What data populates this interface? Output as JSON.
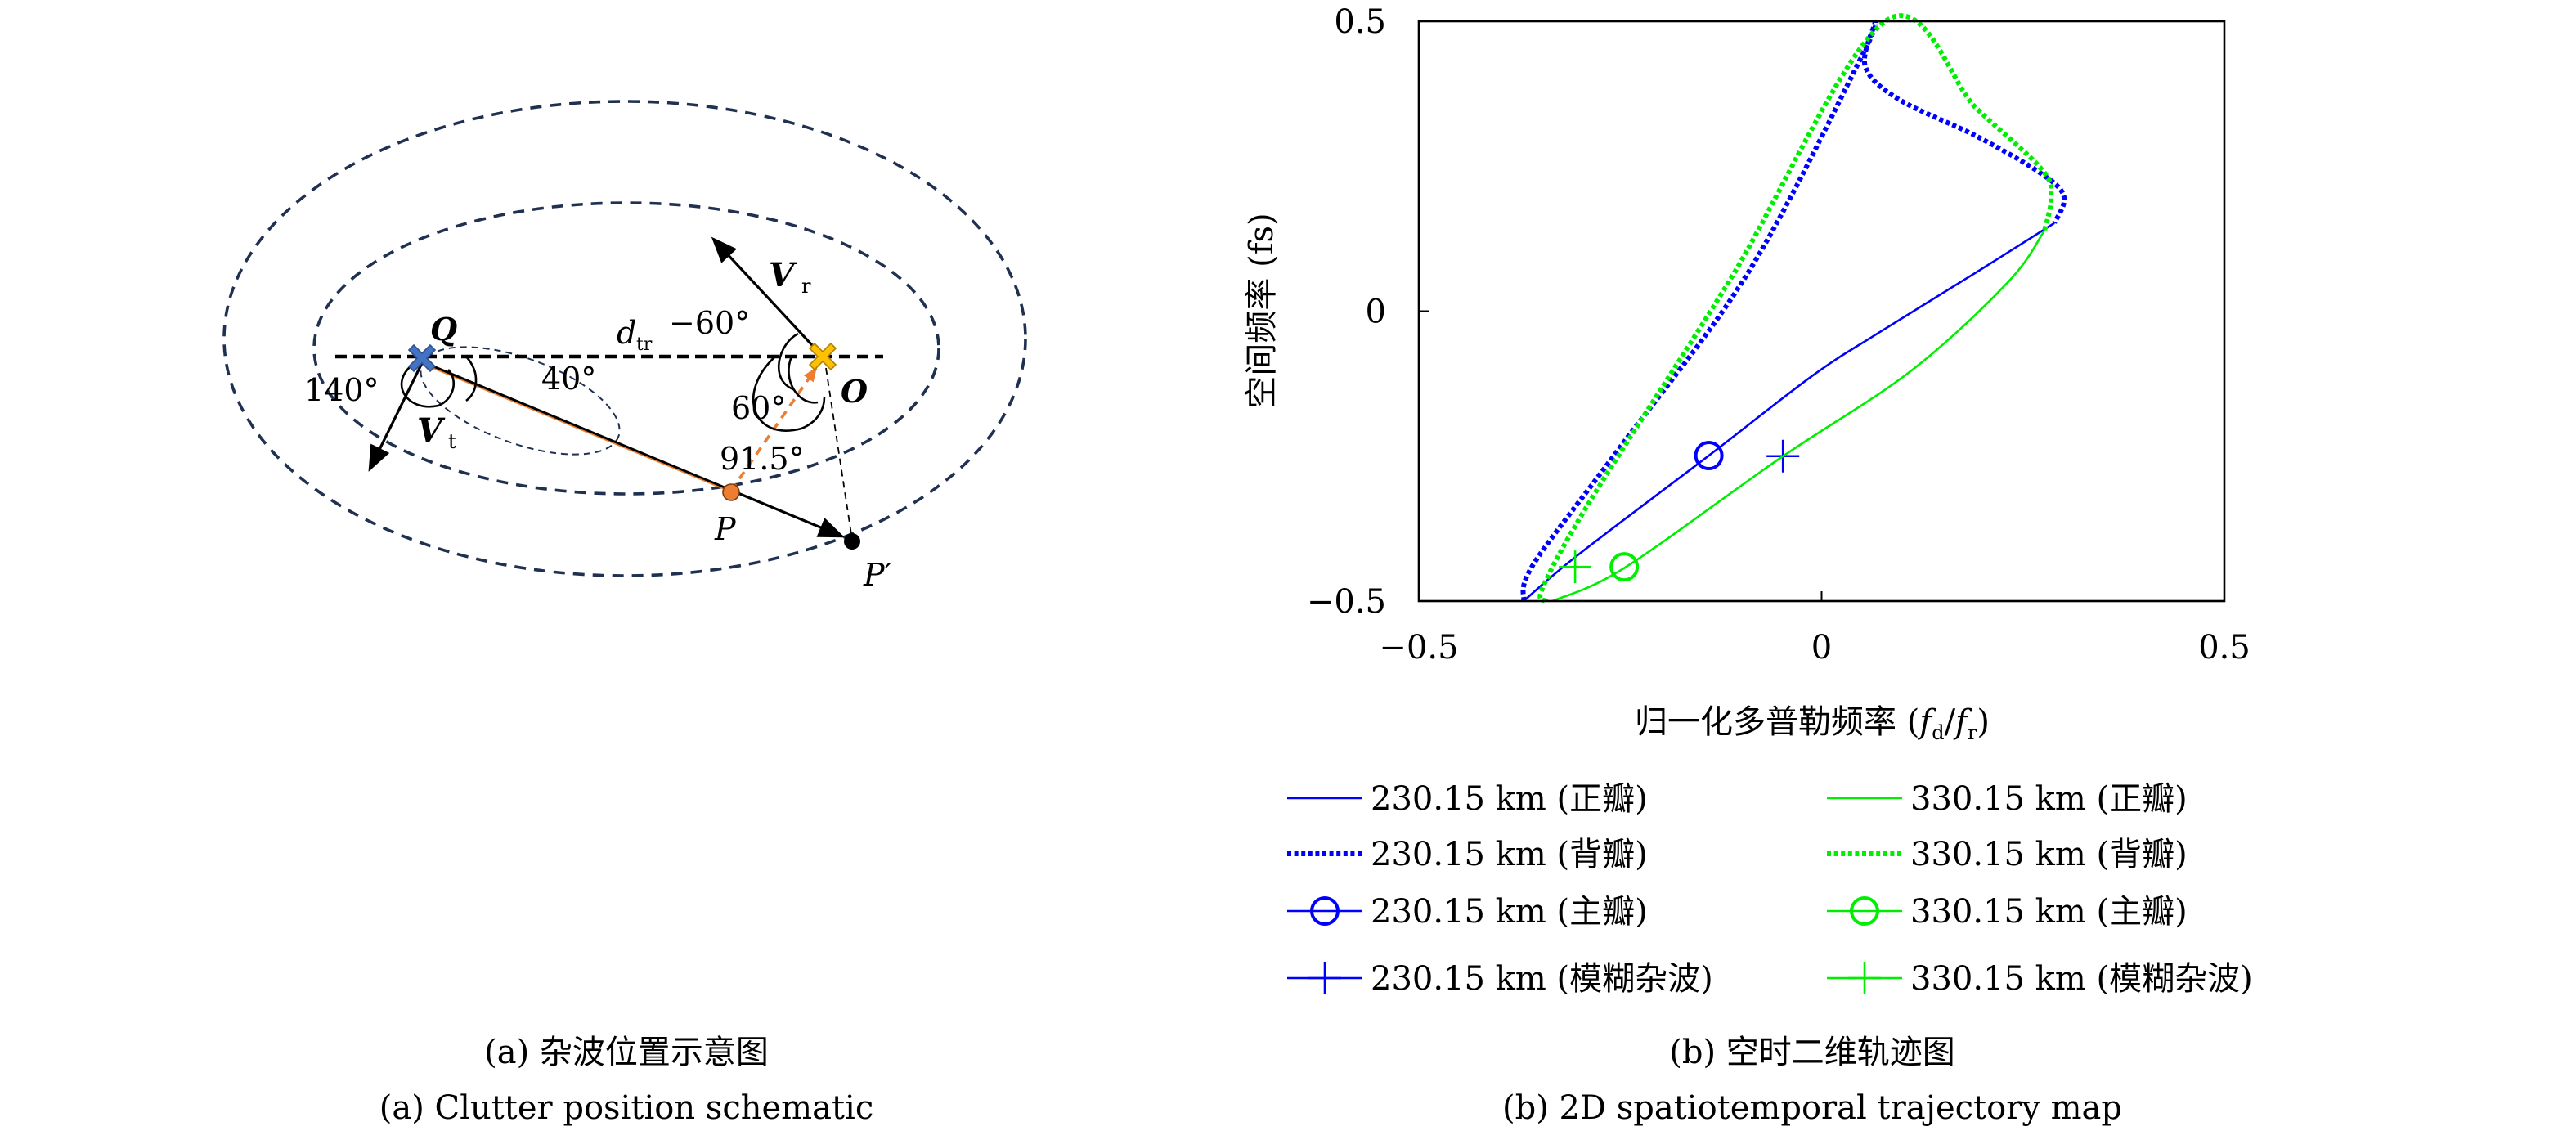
{
  "panel_a": {
    "caption_cn": "(a) 杂波位置示意图",
    "caption_en": "(a) Clutter position schematic",
    "labels": {
      "Q": "Q",
      "O": "O",
      "P": "P",
      "P_prime": "P′",
      "Vr": "V",
      "Vr_sub": "r",
      "Vt": "V",
      "Vt_sub": "t",
      "dtr": "d",
      "dtr_sub": "tr",
      "angle_m60": "−60°",
      "angle_60": "60°",
      "angle_140": "140°",
      "angle_40": "40°",
      "angle_91_5": "91.5°"
    },
    "colors": {
      "ellipse": "#1f3050",
      "Q_marker": "#4472c4",
      "O_marker": "#ffc000",
      "P_marker": "#ed7d31",
      "orange_path": "#ed7d31"
    }
  },
  "panel_b": {
    "caption_cn": "(b) 空时二维轨迹图",
    "caption_en": "(b) 2D spatiotemporal trajectory map"
  },
  "chart_data": {
    "type": "line",
    "xlabel": "归一化多普勒频率 (fd/fr)",
    "xlabel_parts": {
      "prefix": "归一化多普勒频率 (",
      "f1": "f",
      "s1": "d",
      "slash": "/",
      "f2": "f",
      "s2": "r",
      "suffix": ")"
    },
    "ylabel": "空间频率 (fs)",
    "xlim": [
      -0.5,
      0.5
    ],
    "ylim": [
      -0.5,
      0.5
    ],
    "xticks": [
      "-0.5",
      "0",
      "0.5"
    ],
    "xtick_labels": [
      "−0.5",
      "0",
      "0.5"
    ],
    "yticks": [
      "-0.5",
      "0",
      "0.5"
    ],
    "ytick_labels": [
      "−0.5",
      "0",
      "0.5"
    ],
    "grid": false,
    "legend_placement": "below",
    "series": [
      {
        "name": "230.15 km (正瓣)",
        "color": "#0000ff",
        "style": "solid",
        "points": [
          [
            -0.37,
            -0.5
          ],
          [
            -0.302,
            -0.42
          ],
          [
            -0.14,
            -0.249
          ],
          [
            -0.011,
            -0.111
          ],
          [
            0.07,
            -0.038
          ],
          [
            0.192,
            0.067
          ],
          [
            0.289,
            0.152
          ]
        ]
      },
      {
        "name": "230.15 km (背瓣)",
        "color": "#0000ff",
        "style": "dotted",
        "points": [
          [
            -0.37,
            -0.5
          ],
          [
            -0.358,
            -0.437
          ],
          [
            -0.253,
            -0.24
          ],
          [
            -0.091,
            0.067
          ],
          [
            0.05,
            0.44
          ],
          [
            0.066,
            0.496
          ],
          [
            0.054,
            0.423
          ],
          [
            0.095,
            0.366
          ],
          [
            0.192,
            0.302
          ],
          [
            0.273,
            0.237
          ],
          [
            0.301,
            0.197
          ],
          [
            0.289,
            0.152
          ]
        ]
      },
      {
        "name": "230.15 km (主瓣)",
        "color": "#0000ff",
        "style": "marker-circle",
        "points": [
          [
            -0.14,
            -0.249
          ]
        ]
      },
      {
        "name": "230.15 km (模糊杂波)",
        "color": "#0000ff",
        "style": "marker-plus",
        "points": [
          [
            -0.048,
            -0.25
          ]
        ]
      },
      {
        "name": "330.15 km (正瓣)",
        "color": "#00ee00",
        "style": "solid",
        "points": [
          [
            -0.334,
            -0.5
          ],
          [
            -0.245,
            -0.443
          ],
          [
            -0.051,
            -0.253
          ],
          [
            0.111,
            -0.103
          ],
          [
            0.232,
            0.051
          ],
          [
            0.277,
            0.14
          ]
        ]
      },
      {
        "name": "330.15 km (背瓣)",
        "color": "#00ee00",
        "style": "dotted",
        "points": [
          [
            -0.342,
            -0.5
          ],
          [
            -0.346,
            -0.476
          ],
          [
            -0.285,
            -0.322
          ],
          [
            -0.115,
            0.051
          ],
          [
            0.079,
            0.5
          ],
          [
            0.192,
            0.35
          ],
          [
            0.273,
            0.245
          ],
          [
            0.285,
            0.197
          ],
          [
            0.277,
            0.14
          ]
        ]
      },
      {
        "name": "330.15 km (主瓣)",
        "color": "#00ee00",
        "style": "marker-circle",
        "points": [
          [
            -0.245,
            -0.441
          ]
        ]
      },
      {
        "name": "330.15 km (模糊杂波)",
        "color": "#00ee00",
        "style": "marker-plus",
        "points": [
          [
            -0.306,
            -0.441
          ]
        ]
      }
    ]
  }
}
